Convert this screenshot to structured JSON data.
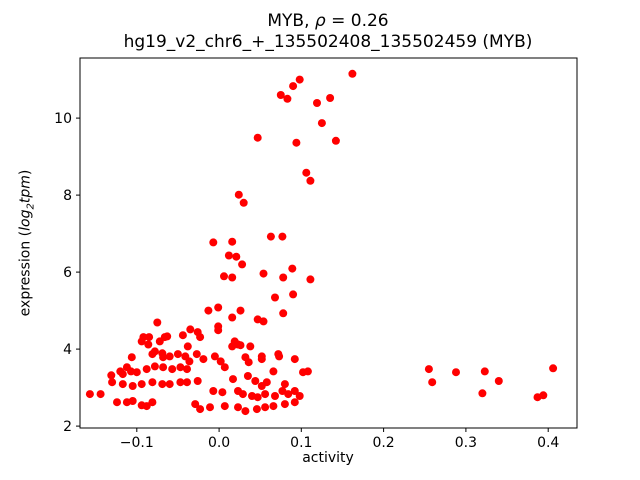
{
  "header": {
    "title_prefix": "MYB, ",
    "title_rho": "ρ",
    "title_rest": " = 0.26",
    "subtitle": "hg19_v2_chr6_+_135502408_135502459 (MYB)"
  },
  "axes": {
    "xlabel": "activity",
    "ylabel_prefix": "expression (",
    "ylabel_log": "log",
    "ylabel_sub": "2",
    "ylabel_word": "tpm",
    "ylabel_suffix": ")"
  },
  "chart_data": {
    "type": "scatter",
    "title": "MYB, ρ = 0.26",
    "subtitle": "hg19_v2_chr6_+_135502408_135502459 (MYB)",
    "xlabel": "activity",
    "ylabel": "expression (log2 tpm)",
    "marker_color": "#ff0000",
    "marker_radius": 4,
    "grid": false,
    "legend": null,
    "xlim": [
      -0.169,
      0.435
    ],
    "ylim": [
      1.95,
      11.56
    ],
    "x_ticks": {
      "values": [
        -0.1,
        0.0,
        0.1,
        0.2,
        0.3,
        0.4
      ],
      "labels": [
        "−0.1",
        "0.0",
        "0.1",
        "0.2",
        "0.3",
        "0.4"
      ]
    },
    "y_ticks": {
      "values": [
        2,
        4,
        6,
        8,
        10
      ],
      "labels": [
        "2",
        "4",
        "6",
        "8",
        "10"
      ]
    },
    "points": [
      [
        0.162,
        11.15
      ],
      [
        0.098,
        11.0
      ],
      [
        0.09,
        10.83
      ],
      [
        0.075,
        10.6
      ],
      [
        0.083,
        10.5
      ],
      [
        0.135,
        10.52
      ],
      [
        0.119,
        10.39
      ],
      [
        0.125,
        9.87
      ],
      [
        0.047,
        9.49
      ],
      [
        0.094,
        9.36
      ],
      [
        0.142,
        9.41
      ],
      [
        0.106,
        8.58
      ],
      [
        0.111,
        8.37
      ],
      [
        0.024,
        8.01
      ],
      [
        0.03,
        7.8
      ],
      [
        0.063,
        6.92
      ],
      [
        0.077,
        6.92
      ],
      [
        -0.007,
        6.77
      ],
      [
        0.016,
        6.79
      ],
      [
        0.012,
        6.43
      ],
      [
        0.021,
        6.4
      ],
      [
        0.028,
        6.2
      ],
      [
        0.006,
        5.89
      ],
      [
        0.016,
        5.86
      ],
      [
        0.054,
        5.96
      ],
      [
        0.089,
        6.09
      ],
      [
        0.078,
        5.86
      ],
      [
        0.111,
        5.81
      ],
      [
        0.09,
        5.42
      ],
      [
        0.068,
        5.34
      ],
      [
        0.078,
        4.93
      ],
      [
        0.054,
        4.72
      ],
      [
        -0.013,
        5.0
      ],
      [
        -0.001,
        5.08
      ],
      [
        0.016,
        4.82
      ],
      [
        0.026,
        5.0
      ],
      [
        -0.075,
        4.69
      ],
      [
        -0.001,
        4.59
      ],
      [
        0.047,
        4.77
      ],
      [
        -0.035,
        4.51
      ],
      [
        -0.092,
        4.31
      ],
      [
        -0.085,
        4.31
      ],
      [
        -0.066,
        4.31
      ],
      [
        -0.044,
        4.36
      ],
      [
        -0.023,
        4.31
      ],
      [
        0.019,
        4.2
      ],
      [
        0.026,
        4.1
      ],
      [
        0.038,
        4.07
      ],
      [
        -0.094,
        4.2
      ],
      [
        -0.086,
        4.12
      ],
      [
        -0.072,
        4.2
      ],
      [
        -0.063,
        4.33
      ],
      [
        -0.026,
        4.44
      ],
      [
        -0.001,
        4.49
      ],
      [
        0.016,
        4.07
      ],
      [
        0.023,
        4.12
      ],
      [
        -0.038,
        4.07
      ],
      [
        -0.081,
        3.87
      ],
      [
        -0.078,
        3.94
      ],
      [
        -0.069,
        3.89
      ],
      [
        -0.106,
        3.79
      ],
      [
        -0.068,
        3.79
      ],
      [
        -0.06,
        3.81
      ],
      [
        -0.05,
        3.87
      ],
      [
        -0.041,
        3.81
      ],
      [
        -0.027,
        3.87
      ],
      [
        -0.019,
        3.74
      ],
      [
        -0.036,
        3.68
      ],
      [
        -0.005,
        3.81
      ],
      [
        0.002,
        3.68
      ],
      [
        0.007,
        3.53
      ],
      [
        0.032,
        3.79
      ],
      [
        0.036,
        3.66
      ],
      [
        0.052,
        3.81
      ],
      [
        0.072,
        3.87
      ],
      [
        0.092,
        3.74
      ],
      [
        0.073,
        3.81
      ],
      [
        0.052,
        3.74
      ],
      [
        -0.12,
        3.42
      ],
      [
        -0.112,
        3.53
      ],
      [
        -0.1,
        3.4
      ],
      [
        -0.088,
        3.48
      ],
      [
        -0.078,
        3.55
      ],
      [
        -0.068,
        3.53
      ],
      [
        -0.057,
        3.48
      ],
      [
        -0.047,
        3.53
      ],
      [
        -0.039,
        3.48
      ],
      [
        -0.131,
        3.32
      ],
      [
        -0.117,
        3.35
      ],
      [
        -0.107,
        3.42
      ],
      [
        0.066,
        3.42
      ],
      [
        0.102,
        3.4
      ],
      [
        0.108,
        3.42
      ],
      [
        -0.157,
        2.83
      ],
      [
        -0.144,
        2.83
      ],
      [
        -0.13,
        3.14
      ],
      [
        -0.117,
        3.09
      ],
      [
        -0.105,
        3.04
      ],
      [
        -0.094,
        3.09
      ],
      [
        -0.081,
        3.14
      ],
      [
        -0.069,
        3.09
      ],
      [
        -0.06,
        3.09
      ],
      [
        -0.047,
        3.14
      ],
      [
        -0.039,
        3.14
      ],
      [
        -0.026,
        3.17
      ],
      [
        0.017,
        3.22
      ],
      [
        0.035,
        3.3
      ],
      [
        0.044,
        3.17
      ],
      [
        0.052,
        3.04
      ],
      [
        0.058,
        3.14
      ],
      [
        0.08,
        3.09
      ],
      [
        -0.007,
        2.91
      ],
      [
        0.004,
        2.88
      ],
      [
        0.023,
        2.91
      ],
      [
        0.029,
        2.83
      ],
      [
        0.04,
        2.78
      ],
      [
        0.047,
        2.75
      ],
      [
        0.056,
        2.83
      ],
      [
        0.068,
        2.78
      ],
      [
        0.077,
        2.91
      ],
      [
        0.084,
        2.83
      ],
      [
        0.092,
        2.91
      ],
      [
        0.098,
        2.78
      ],
      [
        -0.124,
        2.62
      ],
      [
        -0.112,
        2.62
      ],
      [
        -0.105,
        2.65
      ],
      [
        -0.094,
        2.54
      ],
      [
        -0.088,
        2.52
      ],
      [
        -0.081,
        2.62
      ],
      [
        -0.029,
        2.57
      ],
      [
        -0.023,
        2.44
      ],
      [
        -0.011,
        2.49
      ],
      [
        0.007,
        2.52
      ],
      [
        0.023,
        2.49
      ],
      [
        0.032,
        2.39
      ],
      [
        0.046,
        2.44
      ],
      [
        0.056,
        2.49
      ],
      [
        0.066,
        2.52
      ],
      [
        0.08,
        2.57
      ],
      [
        0.092,
        2.62
      ],
      [
        0.255,
        3.48
      ],
      [
        0.259,
        3.14
      ],
      [
        0.288,
        3.4
      ],
      [
        0.323,
        3.42
      ],
      [
        0.34,
        3.17
      ],
      [
        0.32,
        2.85
      ],
      [
        0.387,
        2.75
      ],
      [
        0.394,
        2.8
      ],
      [
        0.406,
        3.5
      ]
    ]
  }
}
